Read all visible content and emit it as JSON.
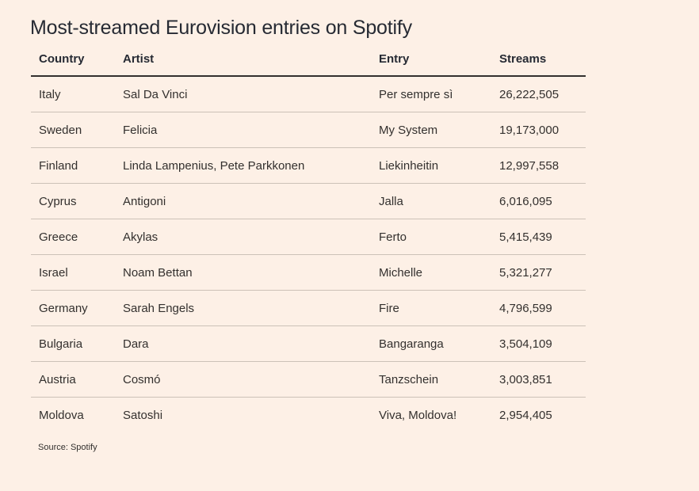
{
  "chart_data": {
    "type": "table",
    "title": "Most-streamed Eurovision entries on Spotify",
    "columns": [
      "Country",
      "Artist",
      "Entry",
      "Streams"
    ],
    "rows": [
      [
        "Italy",
        "Sal Da Vinci",
        "Per sempre sì",
        "26,222,505"
      ],
      [
        "Sweden",
        "Felicia",
        "My System",
        "19,173,000"
      ],
      [
        "Finland",
        "Linda Lampenius, Pete Parkkonen",
        "Liekinheitin",
        "12,997,558"
      ],
      [
        "Cyprus",
        "Antigoni",
        "Jalla",
        "6,016,095"
      ],
      [
        "Greece",
        "Akylas",
        "Ferto",
        "5,415,439"
      ],
      [
        "Israel",
        "Noam Bettan",
        "Michelle",
        "5,321,277"
      ],
      [
        "Germany",
        "Sarah Engels",
        "Fire",
        "4,796,599"
      ],
      [
        "Bulgaria",
        "Dara",
        "Bangaranga",
        "3,504,109"
      ],
      [
        "Austria",
        "Cosmó",
        "Tanzschein",
        "3,003,851"
      ],
      [
        "Moldova",
        "Satoshi",
        "Viva, Moldova!",
        "2,954,405"
      ]
    ],
    "source": "Source: Spotify"
  },
  "colors": {
    "background": "#fdf0e6",
    "text": "#33302e",
    "rule": "#ccc1b7"
  }
}
